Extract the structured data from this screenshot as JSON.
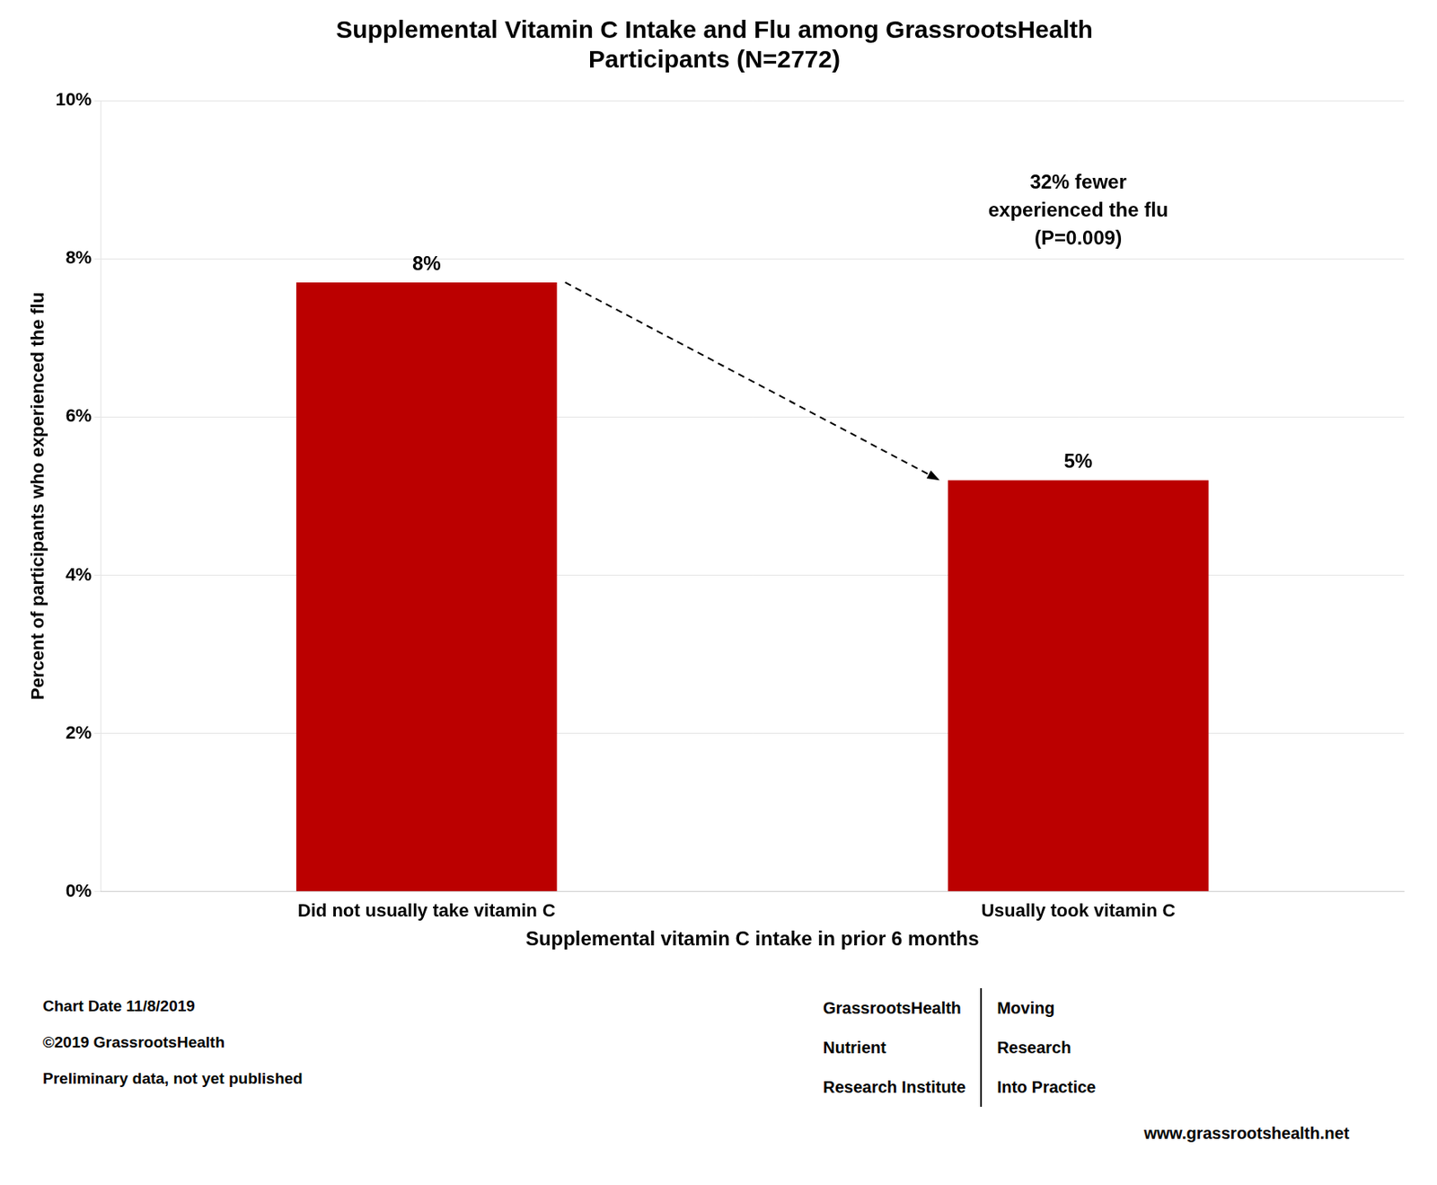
{
  "chart_data": {
    "type": "bar",
    "title": "Supplemental Vitamin C Intake and Flu among GrassrootsHealth\nParticipants (N=2772)",
    "categories": [
      "Did not usually take vitamin C",
      "Usually took vitamin C"
    ],
    "values": [
      7.7,
      5.2
    ],
    "value_labels": [
      "8%",
      "5%"
    ],
    "data_labels": true,
    "color": "#bb0000",
    "x_label": "Supplemental vitamin C intake in prior 6 months",
    "y_label": "Percent of participants who experienced the flu",
    "ylim": [
      0,
      10
    ],
    "yticks": [
      {
        "value": 0,
        "label": "0%"
      },
      {
        "value": 2,
        "label": "2%"
      },
      {
        "value": 4,
        "label": "4%"
      },
      {
        "value": 6,
        "label": "6%"
      },
      {
        "value": 8,
        "label": "8%"
      },
      {
        "value": 10,
        "label": "10%"
      }
    ],
    "grid": true,
    "annotation": "32% fewer\nexperienced the flu\n(P=0.009)",
    "footnotes": [
      "Chart Date  11/8/2019",
      "©2019 GrassrootsHealth",
      "Preliminary data, not yet published"
    ],
    "logo_text_left": [
      "GrassrootsHealth",
      "Nutrient",
      "Research Institute"
    ],
    "logo_text_right": [
      "Moving",
      "Research",
      "Into Practice"
    ],
    "website": "www.grassrootshealth.net"
  }
}
